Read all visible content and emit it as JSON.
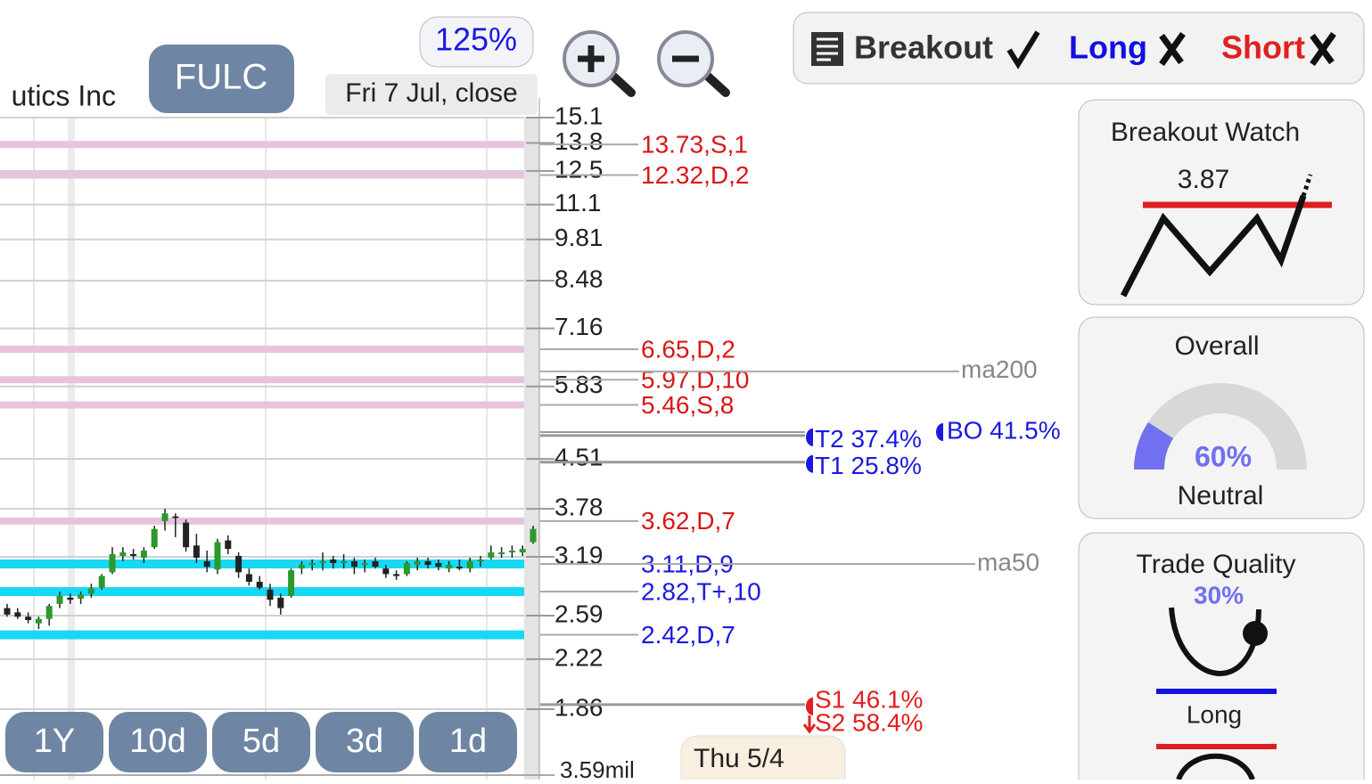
{
  "header": {
    "company_fragment": "utics Inc",
    "ticker": "FULC",
    "zoom": "125%",
    "date": "Fri 7 Jul, close"
  },
  "chart_data": {
    "type": "candlestick",
    "log_scale": true,
    "ylim": [
      1.86,
      15.1
    ],
    "yticks": [
      15.1,
      13.8,
      12.5,
      11.1,
      9.81,
      8.48,
      7.16,
      5.83,
      4.51,
      3.78,
      3.19,
      2.59,
      2.22,
      1.86
    ],
    "up_color": "#2a9a2a",
    "down_color": "#222222",
    "ohlc": [
      [
        2.66,
        2.7,
        2.58,
        2.6
      ],
      [
        2.62,
        2.66,
        2.56,
        2.58
      ],
      [
        2.58,
        2.62,
        2.52,
        2.55
      ],
      [
        2.52,
        2.58,
        2.47,
        2.56
      ],
      [
        2.56,
        2.7,
        2.5,
        2.68
      ],
      [
        2.7,
        2.82,
        2.66,
        2.78
      ],
      [
        2.76,
        2.8,
        2.7,
        2.74
      ],
      [
        2.75,
        2.82,
        2.7,
        2.79
      ],
      [
        2.8,
        2.9,
        2.76,
        2.85
      ],
      [
        2.86,
        3.0,
        2.84,
        2.98
      ],
      [
        3.02,
        3.3,
        3.0,
        3.22
      ],
      [
        3.2,
        3.3,
        3.14,
        3.24
      ],
      [
        3.22,
        3.28,
        3.16,
        3.2
      ],
      [
        3.18,
        3.3,
        3.12,
        3.26
      ],
      [
        3.3,
        3.56,
        3.28,
        3.52
      ],
      [
        3.62,
        3.78,
        3.5,
        3.72
      ],
      [
        3.68,
        3.72,
        3.42,
        3.66
      ],
      [
        3.6,
        3.64,
        3.25,
        3.3
      ],
      [
        3.32,
        3.46,
        3.12,
        3.18
      ],
      [
        3.14,
        3.26,
        3.02,
        3.08
      ],
      [
        3.05,
        3.4,
        3.0,
        3.36
      ],
      [
        3.38,
        3.44,
        3.22,
        3.28
      ],
      [
        3.2,
        3.24,
        2.96,
        3.02
      ],
      [
        3.0,
        3.06,
        2.88,
        2.92
      ],
      [
        2.92,
        2.98,
        2.84,
        2.86
      ],
      [
        2.84,
        2.9,
        2.68,
        2.74
      ],
      [
        2.76,
        2.8,
        2.6,
        2.66
      ],
      [
        2.78,
        3.06,
        2.76,
        3.04
      ],
      [
        3.06,
        3.14,
        3.0,
        3.1
      ],
      [
        3.1,
        3.16,
        3.04,
        3.12
      ],
      [
        3.12,
        3.24,
        3.04,
        3.14
      ],
      [
        3.16,
        3.2,
        3.06,
        3.12
      ],
      [
        3.12,
        3.22,
        3.06,
        3.14
      ],
      [
        3.14,
        3.18,
        3.0,
        3.08
      ],
      [
        3.1,
        3.16,
        3.02,
        3.12
      ],
      [
        3.14,
        3.18,
        3.06,
        3.08
      ],
      [
        3.06,
        3.1,
        2.96,
        3.0
      ],
      [
        3.0,
        3.04,
        2.94,
        2.98
      ],
      [
        3.0,
        3.14,
        2.98,
        3.12
      ],
      [
        3.1,
        3.18,
        3.04,
        3.14
      ],
      [
        3.14,
        3.18,
        3.06,
        3.1
      ],
      [
        3.12,
        3.16,
        3.04,
        3.08
      ],
      [
        3.06,
        3.14,
        3.02,
        3.1
      ],
      [
        3.08,
        3.16,
        3.04,
        3.06
      ],
      [
        3.06,
        3.18,
        3.02,
        3.14
      ],
      [
        3.14,
        3.2,
        3.08,
        3.16
      ],
      [
        3.18,
        3.32,
        3.16,
        3.24
      ],
      [
        3.22,
        3.3,
        3.18,
        3.24
      ],
      [
        3.24,
        3.32,
        3.18,
        3.26
      ],
      [
        3.24,
        3.32,
        3.2,
        3.28
      ],
      [
        3.36,
        3.56,
        3.34,
        3.52
      ]
    ],
    "levels": [
      {
        "price": 13.73,
        "label": "13.73,S,1",
        "kind": "resistance"
      },
      {
        "price": 12.32,
        "label": "12.32,D,2",
        "kind": "resistance"
      },
      {
        "price": 6.65,
        "label": "6.65,D,2",
        "kind": "resistance"
      },
      {
        "price": 5.97,
        "label": "5.97,D,10",
        "kind": "resistance"
      },
      {
        "price": 5.46,
        "label": "5.46,S,8",
        "kind": "resistance"
      },
      {
        "price": 3.62,
        "label": "3.62,D,7",
        "kind": "resistance"
      },
      {
        "price": 3.11,
        "label": "3.11,D,9",
        "kind": "support"
      },
      {
        "price": 2.82,
        "label": "2.82,T+,10",
        "kind": "support"
      },
      {
        "price": 2.42,
        "label": "2.42,D,7",
        "kind": "support"
      }
    ],
    "targets": [
      {
        "price": 4.9,
        "label": "T2 37.4%",
        "kind": "target"
      },
      {
        "price": 4.46,
        "label": "T1 25.8%",
        "kind": "target"
      },
      {
        "price": 1.89,
        "label": "S1 46.1%",
        "kind": "stop"
      },
      {
        "price": 1.74,
        "label": "S2 58.4%",
        "kind": "stop"
      }
    ],
    "breakout_target": {
      "price": 4.96,
      "label": "BO 41.5%"
    },
    "moving_averages": [
      {
        "name": "ma200",
        "price": 6.15
      },
      {
        "name": "ma50",
        "price": 3.11
      }
    ],
    "volume_tick": "3.59mil"
  },
  "range_buttons": [
    "1Y",
    "10d",
    "5d",
    "3d",
    "1d"
  ],
  "date_tooltip": "Thu 5/4",
  "signals": [
    {
      "label": "Breakout",
      "color": "#333333",
      "icon": "check"
    },
    {
      "label": "Long",
      "color": "#1010e0",
      "icon": "cross"
    },
    {
      "label": "Short",
      "color": "#e02020",
      "icon": "cross"
    }
  ],
  "panels": {
    "breakout_watch": {
      "title": "Breakout Watch",
      "level": "3.87"
    },
    "overall": {
      "title": "Overall",
      "score": "60%",
      "rating": "Neutral"
    },
    "trade_quality": {
      "title": "Trade Quality",
      "score": "30%",
      "direction": "Long"
    }
  }
}
